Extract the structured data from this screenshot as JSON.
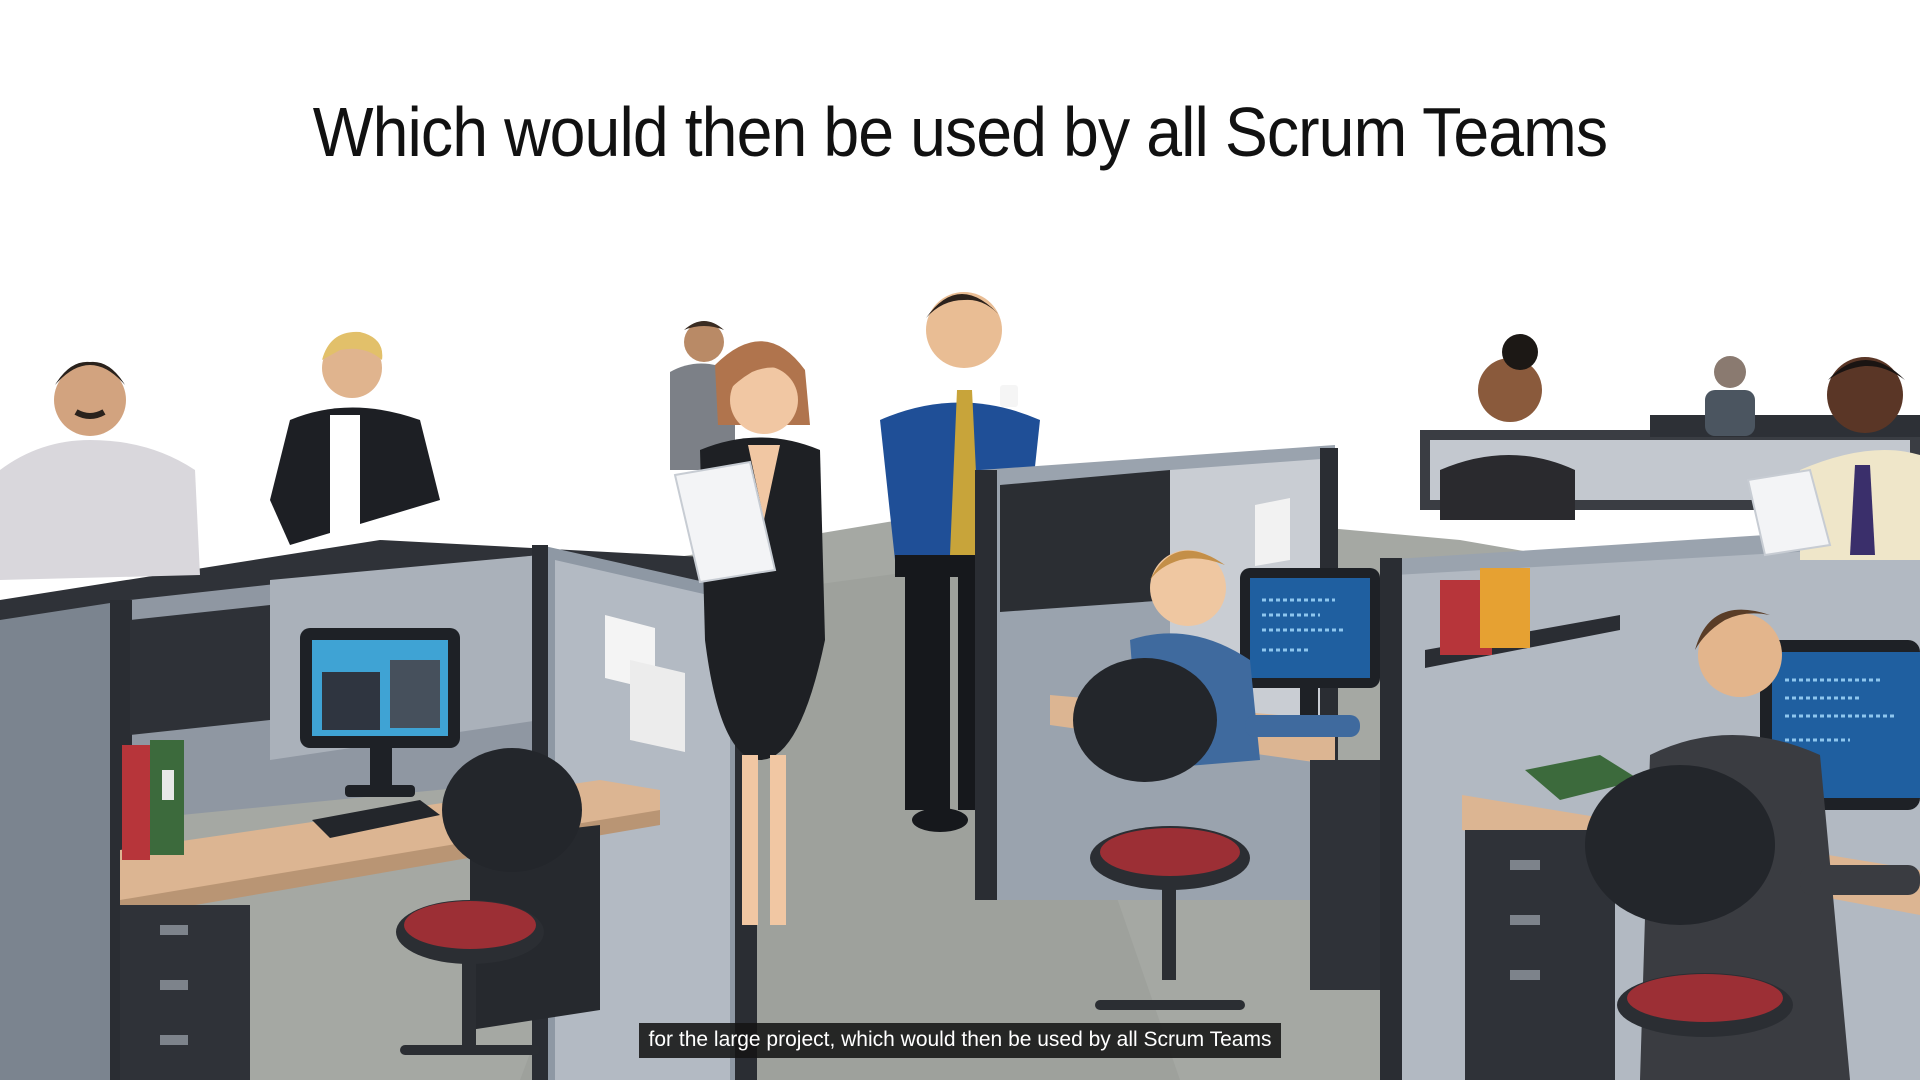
{
  "slide": {
    "headline": "Which would then be used by all Scrum Teams"
  },
  "video": {
    "subtitle": "for the large project, which would then be used by all Scrum Teams"
  }
}
